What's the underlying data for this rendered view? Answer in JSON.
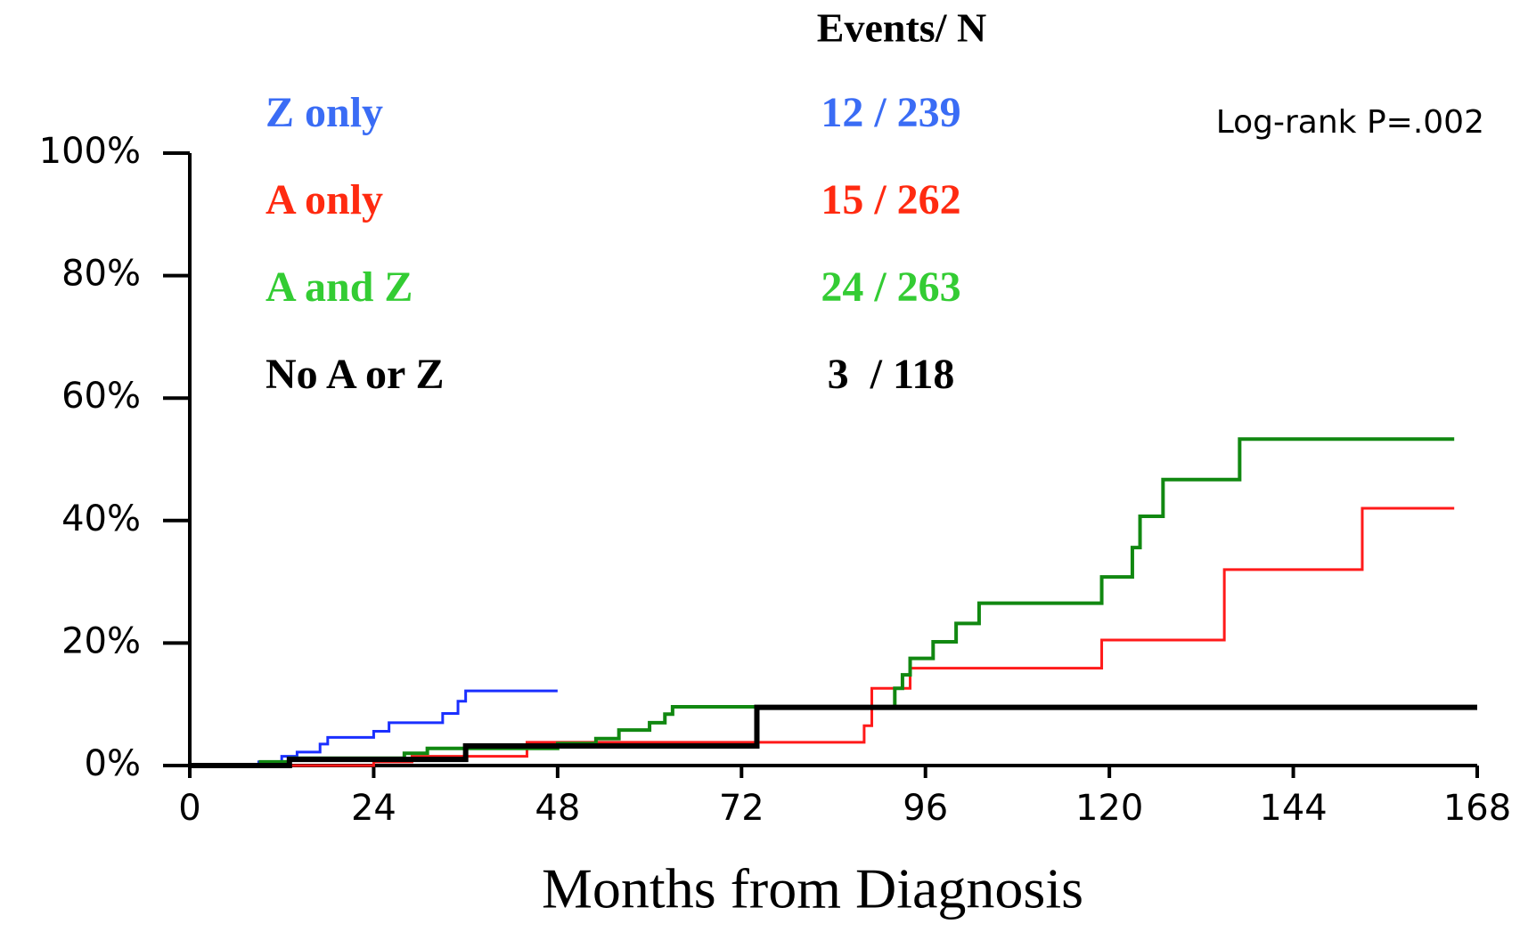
{
  "chart_data": {
    "type": "step",
    "header": "Events/ N",
    "annotation": "Log-rank P=.002",
    "x_label": "Months from Diagnosis",
    "xlim": [
      0,
      168
    ],
    "xticks": [
      0,
      24,
      48,
      72,
      96,
      120,
      144,
      168
    ],
    "ylim": [
      0,
      100
    ],
    "yticks": [
      {
        "value": 0,
        "label": "0%"
      },
      {
        "value": 20,
        "label": "20%"
      },
      {
        "value": 40,
        "label": "40%"
      },
      {
        "value": 60,
        "label": "60%"
      },
      {
        "value": 80,
        "label": "80%"
      },
      {
        "value": 100,
        "label": "100%"
      }
    ],
    "series": [
      {
        "name": "Z only",
        "events": "12 / 239",
        "color": "#1a2fff",
        "label_color": "#3a6cf5",
        "width": 3,
        "x": [
          4,
          9,
          12,
          14,
          17,
          18,
          24,
          26,
          33,
          35,
          36,
          48
        ],
        "values": [
          0,
          0.6,
          1.5,
          2.2,
          3.5,
          4.6,
          5.6,
          7,
          8.5,
          10.5,
          12.2,
          12.2
        ]
      },
      {
        "name": "A only",
        "events": "15 / 262",
        "color": "#ff1a1a",
        "label_color": "#ff2a10",
        "width": 3,
        "x": [
          10,
          24,
          29,
          44,
          88,
          89,
          94,
          119,
          135,
          153,
          165
        ],
        "values": [
          0,
          0.6,
          1.5,
          3.8,
          6.5,
          12.6,
          15.9,
          20.5,
          32,
          42,
          42
        ]
      },
      {
        "name": "A and Z",
        "events": "24 / 263",
        "color": "#118811",
        "label_color": "#33cc33",
        "width": 4,
        "x": [
          9,
          13,
          28,
          31,
          48,
          53,
          56,
          60,
          62,
          63,
          92,
          93,
          94,
          97,
          100,
          103,
          119,
          123,
          124,
          127,
          137,
          165
        ],
        "values": [
          0.6,
          1.2,
          2,
          2.8,
          3.6,
          4.4,
          5.8,
          7,
          8.4,
          9.6,
          12.6,
          14.8,
          17.5,
          20.2,
          23.2,
          26.5,
          30.8,
          35.6,
          40.7,
          46.7,
          53.3,
          53.3
        ]
      },
      {
        "name": "No A or Z",
        "events": "3  / 118",
        "color": "#000000",
        "label_color": "#000000",
        "width": 6,
        "x": [
          0,
          13,
          36,
          74,
          168
        ],
        "values": [
          0,
          1,
          3.2,
          9.5,
          9.5
        ]
      }
    ]
  }
}
